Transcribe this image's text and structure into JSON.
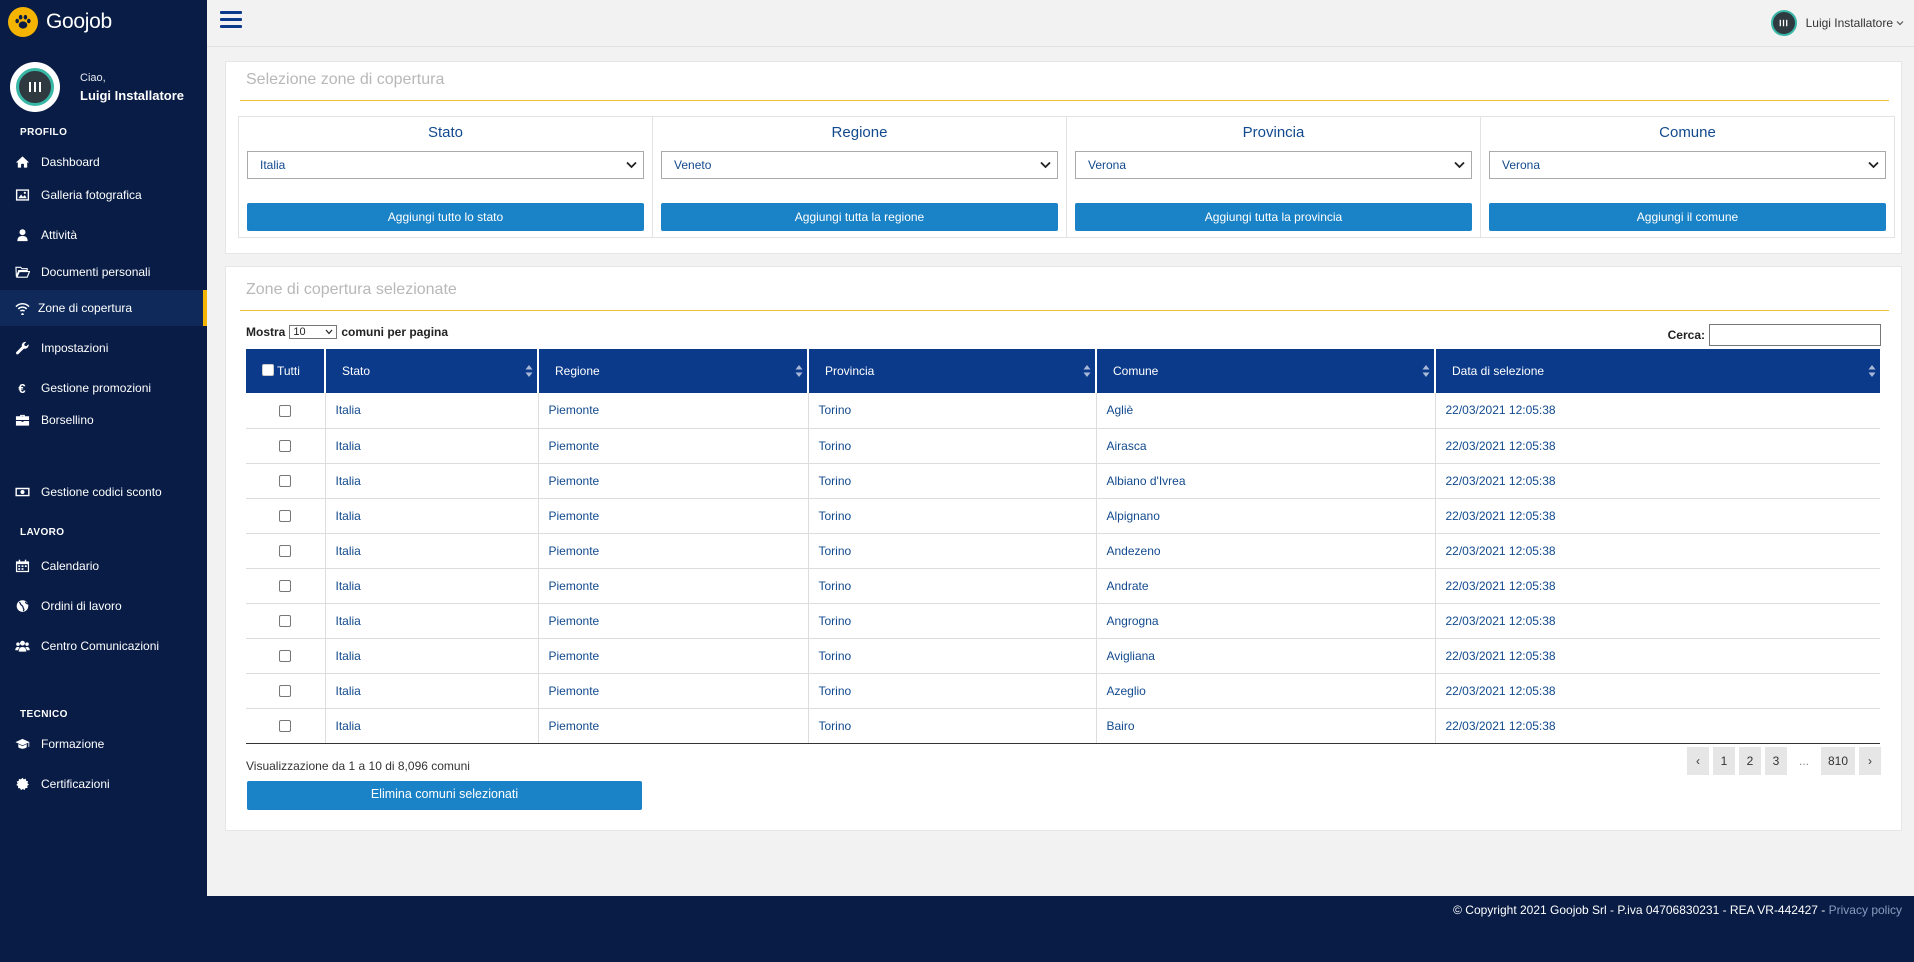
{
  "brand": {
    "name": "Goojob"
  },
  "profile": {
    "greeting": "Ciao,",
    "name": "Luigi Installatore"
  },
  "sidebar": {
    "sections": [
      {
        "title": "PROFILO"
      },
      {
        "title": "LAVORO"
      },
      {
        "title": "TECNICO"
      }
    ],
    "items": [
      {
        "label": "Dashboard",
        "icon": "home-icon"
      },
      {
        "label": "Galleria fotografica",
        "icon": "image-icon"
      },
      {
        "label": "Attività",
        "icon": "user-icon"
      },
      {
        "label": "Documenti personali",
        "icon": "folder-open-icon"
      },
      {
        "label": "Zone di copertura",
        "icon": "wifi-icon",
        "active": true
      },
      {
        "label": "Impostazioni",
        "icon": "wrench-icon"
      },
      {
        "label": "Gestione promozioni",
        "icon": "euro-icon"
      },
      {
        "label": "Borsellino",
        "icon": "briefcase-icon"
      },
      {
        "label": "Gestione codici sconto",
        "icon": "money-icon"
      },
      {
        "label": "Calendario",
        "icon": "calendar-icon"
      },
      {
        "label": "Ordini di lavoro",
        "icon": "globe-icon"
      },
      {
        "label": "Centro Comunicazioni",
        "icon": "users-icon"
      },
      {
        "label": "Formazione",
        "icon": "graduation-cap-icon"
      },
      {
        "label": "Certificazioni",
        "icon": "certificate-icon"
      }
    ]
  },
  "topbar": {
    "user_name": "Luigi Installatore"
  },
  "selection_panel": {
    "title": "Selezione zone di copertura",
    "columns": [
      {
        "label": "Stato",
        "value": "Italia",
        "button": "Aggiungi tutto lo stato"
      },
      {
        "label": "Regione",
        "value": "Veneto",
        "button": "Aggiungi tutta la regione"
      },
      {
        "label": "Provincia",
        "value": "Verona",
        "button": "Aggiungi tutta la provincia"
      },
      {
        "label": "Comune",
        "value": "Verona",
        "button": "Aggiungi il comune"
      }
    ]
  },
  "zones_panel": {
    "title": "Zone di copertura selezionate",
    "show_label": "Mostra",
    "page_size": "10",
    "per_page_label": "comuni per pagina",
    "search_label": "Cerca:",
    "search_value": "",
    "headers": {
      "all": "Tutti",
      "stato": "Stato",
      "regione": "Regione",
      "provincia": "Provincia",
      "comune": "Comune",
      "data": "Data di selezione"
    },
    "rows": [
      {
        "stato": "Italia",
        "regione": "Piemonte",
        "provincia": "Torino",
        "comune": "Agliè",
        "data": "22/03/2021 12:05:38"
      },
      {
        "stato": "Italia",
        "regione": "Piemonte",
        "provincia": "Torino",
        "comune": "Airasca",
        "data": "22/03/2021 12:05:38"
      },
      {
        "stato": "Italia",
        "regione": "Piemonte",
        "provincia": "Torino",
        "comune": "Albiano d'Ivrea",
        "data": "22/03/2021 12:05:38"
      },
      {
        "stato": "Italia",
        "regione": "Piemonte",
        "provincia": "Torino",
        "comune": "Alpignano",
        "data": "22/03/2021 12:05:38"
      },
      {
        "stato": "Italia",
        "regione": "Piemonte",
        "provincia": "Torino",
        "comune": "Andezeno",
        "data": "22/03/2021 12:05:38"
      },
      {
        "stato": "Italia",
        "regione": "Piemonte",
        "provincia": "Torino",
        "comune": "Andrate",
        "data": "22/03/2021 12:05:38"
      },
      {
        "stato": "Italia",
        "regione": "Piemonte",
        "provincia": "Torino",
        "comune": "Angrogna",
        "data": "22/03/2021 12:05:38"
      },
      {
        "stato": "Italia",
        "regione": "Piemonte",
        "provincia": "Torino",
        "comune": "Avigliana",
        "data": "22/03/2021 12:05:38"
      },
      {
        "stato": "Italia",
        "regione": "Piemonte",
        "provincia": "Torino",
        "comune": "Azeglio",
        "data": "22/03/2021 12:05:38"
      },
      {
        "stato": "Italia",
        "regione": "Piemonte",
        "provincia": "Torino",
        "comune": "Bairo",
        "data": "22/03/2021 12:05:38"
      }
    ],
    "info": "Visualizzazione da 1 a 10 di 8,096 comuni",
    "delete_button": "Elimina comuni selezionati",
    "pagination": {
      "prev": "‹",
      "pages": [
        "1",
        "2",
        "3"
      ],
      "ellipsis": "...",
      "last": "810",
      "next": "›"
    }
  },
  "footer": {
    "copyright": "© Copyright 2021 Goojob Srl - P.iva 04706830231 - REA VR-442427 - ",
    "privacy": "Privacy policy"
  },
  "colors": {
    "sidebar": "#081c45",
    "header_blue": "#0b3a8a",
    "button_blue": "#1a82c6",
    "accent": "#f5b400"
  }
}
